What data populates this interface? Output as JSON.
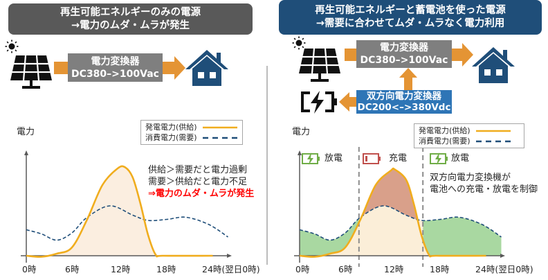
{
  "left": {
    "header": [
      "再生可能エネルギーのみの電源",
      "→電力のムダ・ムラが発生"
    ],
    "converter": [
      "電力変換器",
      "DC380–>100Vac"
    ],
    "annotation": [
      "供給＞需要だと電力過剰",
      "需要＞供給だと電力不足",
      "⇒電力のムダ・ムラが発生"
    ]
  },
  "right": {
    "header": [
      "再生可能エネルギーと蓄電池を使った電源",
      "→需要に合わせてムダ・ムラなく電力利用"
    ],
    "converter": [
      "電力変換器",
      "DC380–>100Vac"
    ],
    "bidirectional": [
      "双方向電力変換器",
      "DC200<–>380Vdc"
    ],
    "phases": [
      "放電",
      "充電",
      "放電"
    ],
    "annotation": [
      "双方向電力変換機が",
      "電池への充電・放電を制御"
    ]
  },
  "colors": {
    "header_left": "#595959",
    "header_right": "#1f4e79",
    "converter": "#7f7f7f",
    "bidirectional": "#2e75b6",
    "arrow": "#e49434",
    "house": "#1f4e79",
    "supply": "#f0ad1e",
    "demand": "#1f4e79",
    "discharge": "#70ad47",
    "charge": "#c0504d",
    "warning": "#ff0000"
  },
  "icons": [
    "sun-icon",
    "solar-panel-icon",
    "house-icon",
    "battery-charging-icon",
    "battery-low-icon"
  ],
  "chart_data": [
    {
      "type": "line",
      "ylabel": "電力",
      "x_ticks": [
        "0時",
        "6時",
        "12時",
        "18時",
        "24時(翌日0時)"
      ],
      "legend": [
        "発電電力(供給)",
        "消費電力(需要)"
      ],
      "series": [
        {
          "name": "発電電力(供給)",
          "x": [
            0,
            2,
            4,
            6,
            8,
            10,
            12,
            13,
            14,
            15,
            16,
            17,
            18,
            24.5
          ],
          "values": [
            0,
            -0.1,
            0.2,
            0.8,
            3.5,
            6.8,
            8.4,
            8.5,
            7.5,
            5,
            2,
            0.1,
            0,
            0
          ]
        },
        {
          "name": "消費電力(需要)",
          "x": [
            0,
            2,
            4,
            6,
            8,
            11,
            14,
            16,
            18.5,
            21,
            24,
            26.5
          ],
          "values": [
            2.5,
            2.1,
            1.5,
            2.2,
            3.7,
            4.8,
            3.9,
            3.4,
            3.5,
            3.7,
            3.0,
            1.8
          ]
        }
      ]
    },
    {
      "type": "area",
      "ylabel": "電力",
      "x_ticks": [
        "0時",
        "6時",
        "12時",
        "18時",
        "24時(翌日0時)"
      ],
      "legend": [
        "発電電力(供給)",
        "消費電力(需要)"
      ],
      "charge_window_hours": [
        7.8,
        16.2
      ],
      "series": [
        {
          "name": "発電電力(供給)",
          "x": [
            0,
            2,
            4,
            6,
            8,
            10,
            12,
            12.5,
            14,
            15,
            16,
            17,
            18,
            24.5
          ],
          "values": [
            0,
            -0.1,
            0.2,
            0.8,
            3.5,
            6.8,
            8.2,
            8.3,
            7.3,
            5,
            2,
            0.1,
            0,
            0
          ]
        },
        {
          "name": "消費電力(需要)",
          "x": [
            0,
            2,
            4,
            6,
            8,
            11,
            14,
            16,
            18.5,
            21,
            24,
            26.5
          ],
          "values": [
            2.5,
            2.1,
            1.5,
            2.2,
            3.7,
            4.8,
            3.9,
            3.4,
            3.5,
            3.7,
            3.0,
            1.8
          ]
        }
      ]
    }
  ]
}
